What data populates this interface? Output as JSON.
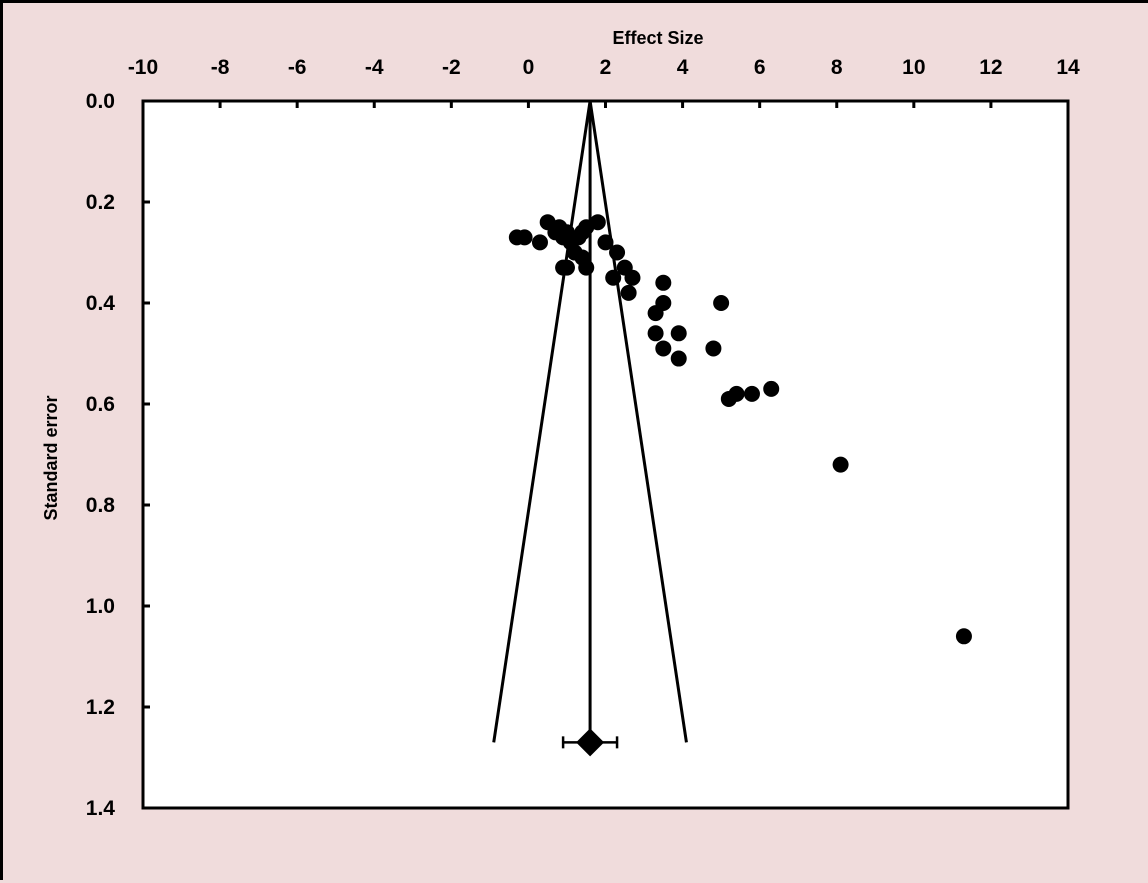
{
  "chart_data": {
    "type": "scatter",
    "subtype": "funnel-plot",
    "title": "",
    "xlabel": "Effect Size",
    "ylabel": "Standard error",
    "x_axis_position": "top",
    "y_axis_inverted": true,
    "xlim": [
      -10,
      14
    ],
    "ylim": [
      0.0,
      1.4
    ],
    "x_ticks": [
      "-10",
      "-8",
      "-6",
      "-4",
      "-2",
      "0",
      "2",
      "4",
      "6",
      "8",
      "10",
      "12",
      "14"
    ],
    "x_tick_values": [
      -10,
      -8,
      -6,
      -4,
      -2,
      0,
      2,
      4,
      6,
      8,
      10,
      12,
      14
    ],
    "y_ticks": [
      "0.0",
      "0.2",
      "0.4",
      "0.6",
      "0.8",
      "1.0",
      "1.2",
      "1.4"
    ],
    "y_tick_values": [
      0.0,
      0.2,
      0.4,
      0.6,
      0.8,
      1.0,
      1.2,
      1.4
    ],
    "grid": false,
    "legend": "none",
    "pooled_effect": 1.6,
    "pooled_se_position": 1.27,
    "pooled_ci": [
      0.9,
      2.3
    ],
    "funnel_lines": [
      {
        "x1": 1.6,
        "y1": 0.0,
        "x2": -0.9,
        "y2": 1.27
      },
      {
        "x1": 1.6,
        "y1": 0.0,
        "x2": 4.1,
        "y2": 1.27
      }
    ],
    "series": [
      {
        "points": [
          {
            "x": -0.3,
            "y": 0.27
          },
          {
            "x": -0.1,
            "y": 0.27
          },
          {
            "x": 0.3,
            "y": 0.28
          },
          {
            "x": 0.5,
            "y": 0.24
          },
          {
            "x": 0.7,
            "y": 0.26
          },
          {
            "x": 0.8,
            "y": 0.25
          },
          {
            "x": 0.9,
            "y": 0.27
          },
          {
            "x": 1.0,
            "y": 0.26
          },
          {
            "x": 1.1,
            "y": 0.28
          },
          {
            "x": 1.2,
            "y": 0.3
          },
          {
            "x": 1.3,
            "y": 0.27
          },
          {
            "x": 1.4,
            "y": 0.26
          },
          {
            "x": 1.5,
            "y": 0.25
          },
          {
            "x": 1.4,
            "y": 0.31
          },
          {
            "x": 1.2,
            "y": 0.3
          },
          {
            "x": 1.0,
            "y": 0.33
          },
          {
            "x": 1.5,
            "y": 0.33
          },
          {
            "x": 0.9,
            "y": 0.33
          },
          {
            "x": 1.8,
            "y": 0.24
          },
          {
            "x": 2.0,
            "y": 0.28
          },
          {
            "x": 2.3,
            "y": 0.3
          },
          {
            "x": 2.5,
            "y": 0.33
          },
          {
            "x": 2.7,
            "y": 0.35
          },
          {
            "x": 2.2,
            "y": 0.35
          },
          {
            "x": 2.6,
            "y": 0.38
          },
          {
            "x": 3.5,
            "y": 0.36
          },
          {
            "x": 3.5,
            "y": 0.4
          },
          {
            "x": 3.3,
            "y": 0.42
          },
          {
            "x": 3.3,
            "y": 0.46
          },
          {
            "x": 3.5,
            "y": 0.49
          },
          {
            "x": 3.9,
            "y": 0.46
          },
          {
            "x": 3.9,
            "y": 0.51
          },
          {
            "x": 4.8,
            "y": 0.49
          },
          {
            "x": 5.0,
            "y": 0.4
          },
          {
            "x": 5.2,
            "y": 0.59
          },
          {
            "x": 5.4,
            "y": 0.58
          },
          {
            "x": 5.8,
            "y": 0.58
          },
          {
            "x": 6.3,
            "y": 0.57
          },
          {
            "x": 8.1,
            "y": 0.72
          },
          {
            "x": 11.3,
            "y": 1.06
          }
        ]
      }
    ]
  }
}
